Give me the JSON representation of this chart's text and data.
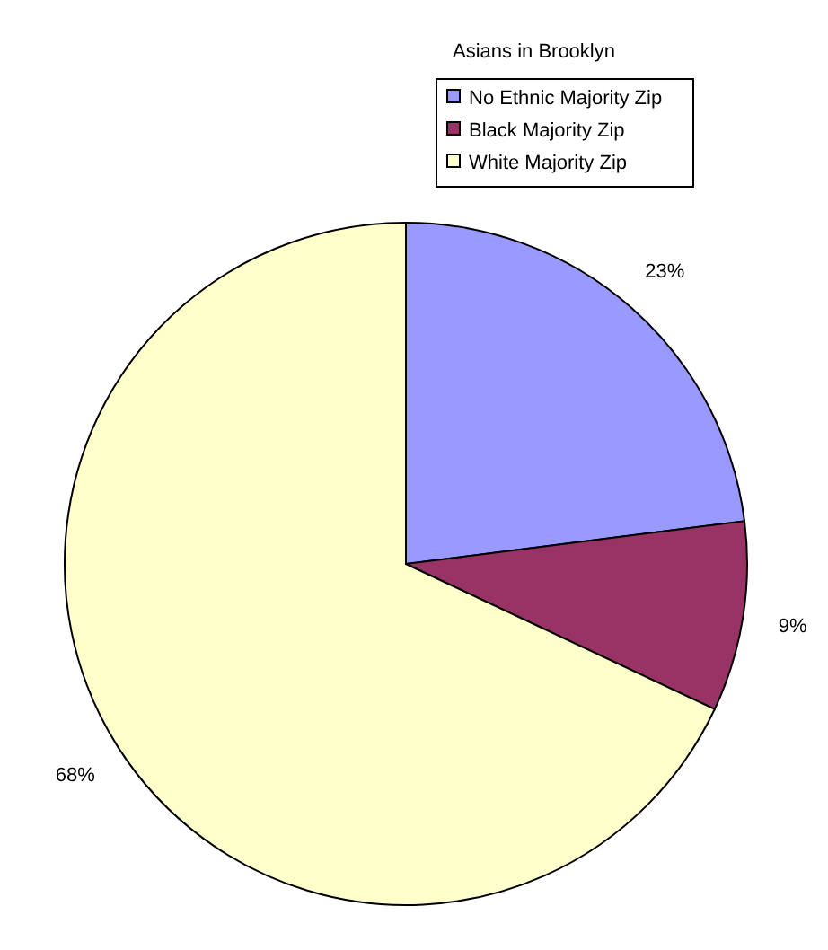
{
  "chart_data": {
    "type": "pie",
    "title": "Asians in Brooklyn",
    "categories": [
      "No Ethnic Majority Zip",
      "Black Majority Zip",
      "White Majority Zip"
    ],
    "values": [
      23,
      9,
      68
    ],
    "colors": [
      "#9999ff",
      "#993366",
      "#ffffcc"
    ],
    "value_labels": [
      "23%",
      "9%",
      "68%"
    ],
    "legend": "top right"
  }
}
